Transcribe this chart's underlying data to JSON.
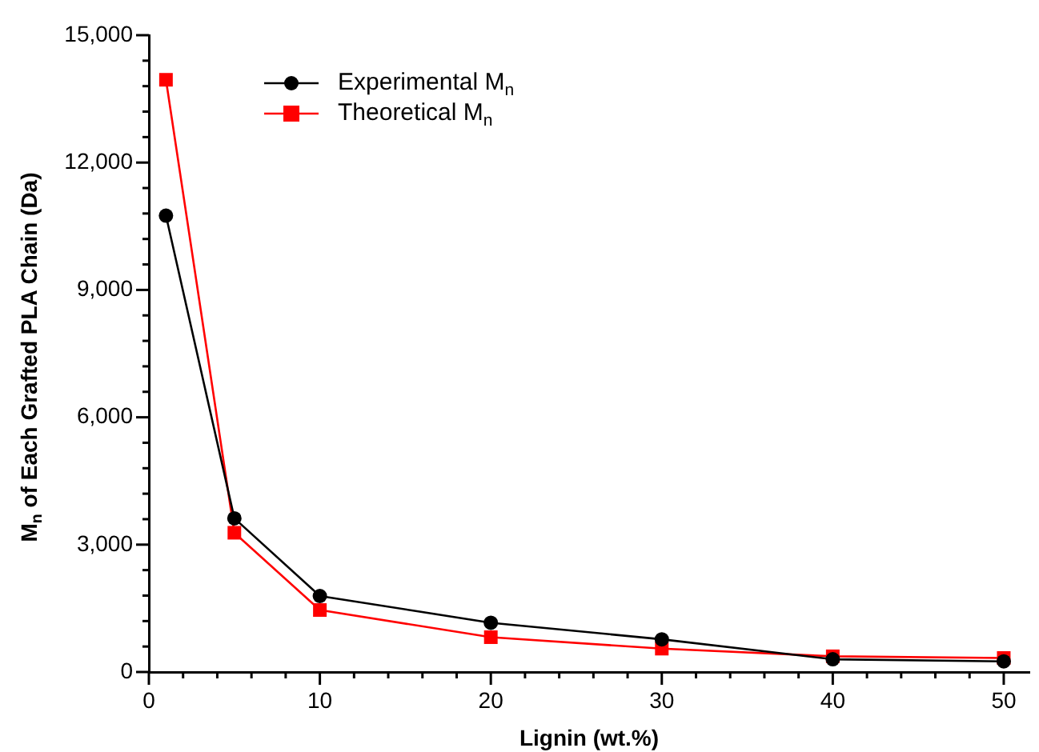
{
  "chart_data": {
    "type": "line",
    "xlabel": "Lignin (wt.%)",
    "ylabel": "M$_{n}$ of Each Grafted PLA Chain (Da)",
    "x": [
      1,
      5,
      10,
      20,
      30,
      40,
      50
    ],
    "series": [
      {
        "name": "Experimental M$_{n}$",
        "color": "#000000",
        "marker": "circle",
        "values": [
          10750,
          3620,
          1790,
          1160,
          770,
          300,
          250
        ]
      },
      {
        "name": "Theoretical M$_{n}$",
        "color": "#ff0000",
        "marker": "square",
        "values": [
          13950,
          3280,
          1460,
          820,
          550,
          370,
          330
        ]
      }
    ],
    "xlim": [
      0,
      51.5
    ],
    "ylim": [
      0,
      15000
    ],
    "xticks": [
      0,
      {
        "value": 2,
        "label": null
      },
      {
        "value": 4,
        "label": null
      },
      {
        "value": 6,
        "label": null
      },
      {
        "value": 8,
        "label": null
      },
      10,
      {
        "value": 12,
        "label": null
      },
      {
        "value": 14,
        "label": null
      },
      {
        "value": 16,
        "label": null
      },
      {
        "value": 18,
        "label": null
      },
      20,
      {
        "value": 22,
        "label": null
      },
      {
        "value": 24,
        "label": null
      },
      {
        "value": 26,
        "label": null
      },
      {
        "value": 28,
        "label": null
      },
      30,
      {
        "value": 32,
        "label": null
      },
      {
        "value": 34,
        "label": null
      },
      {
        "value": 36,
        "label": null
      },
      {
        "value": 38,
        "label": null
      },
      40,
      {
        "value": 42,
        "label": null
      },
      {
        "value": 44,
        "label": null
      },
      {
        "value": 46,
        "label": null
      },
      {
        "value": 48,
        "label": null
      },
      50
    ],
    "yticks": [
      0,
      {
        "value": 600,
        "label": null
      },
      {
        "value": 1200,
        "label": null
      },
      {
        "value": 1800,
        "label": null
      },
      {
        "value": 2400,
        "label": null
      },
      {
        "value": 3000,
        "label": "3,000"
      },
      {
        "value": 3600,
        "label": null
      },
      {
        "value": 4200,
        "label": null
      },
      {
        "value": 4800,
        "label": null
      },
      {
        "value": 5400,
        "label": null
      },
      {
        "value": 6000,
        "label": "6,000"
      },
      {
        "value": 6600,
        "label": null
      },
      {
        "value": 7200,
        "label": null
      },
      {
        "value": 7800,
        "label": null
      },
      {
        "value": 8400,
        "label": null
      },
      {
        "value": 9000,
        "label": "9,000"
      },
      {
        "value": 9600,
        "label": null
      },
      {
        "value": 10200,
        "label": null
      },
      {
        "value": 10800,
        "label": null
      },
      {
        "value": 11400,
        "label": null
      },
      {
        "value": 12000,
        "label": "12,000"
      },
      {
        "value": 12600,
        "label": null
      },
      {
        "value": 13200,
        "label": null
      },
      {
        "value": 13800,
        "label": null
      },
      {
        "value": 14400,
        "label": null
      },
      {
        "value": 15000,
        "label": "15,000"
      }
    ],
    "grid": false,
    "legend": "top left",
    "line_style": "solid"
  }
}
